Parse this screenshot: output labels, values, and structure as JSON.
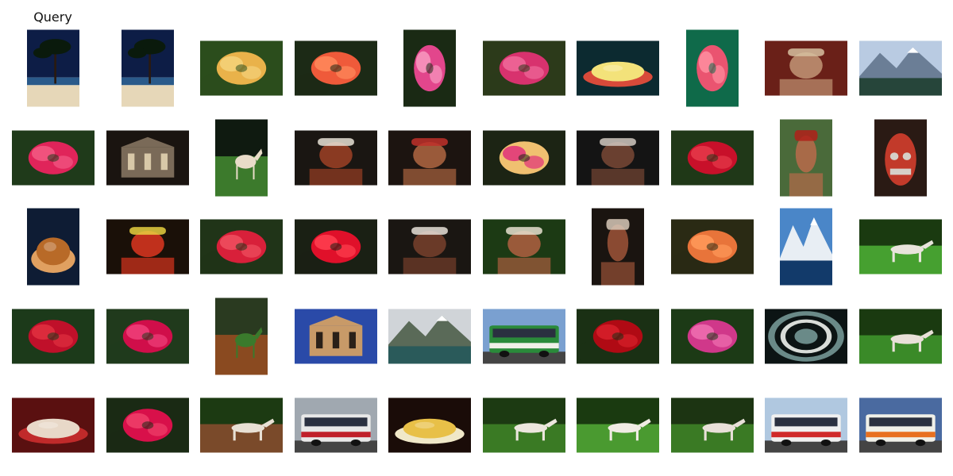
{
  "query_label": "Query",
  "results": [
    {
      "subject": "beach-palms",
      "orientation": "portrait",
      "palette": [
        "#0d1d46",
        "#2a5a8a",
        "#e6d7b8"
      ]
    },
    {
      "subject": "beach-palms",
      "orientation": "portrait",
      "palette": [
        "#0d1d46",
        "#2a5a8a",
        "#e6d7b8"
      ]
    },
    {
      "subject": "flower",
      "orientation": "landscape",
      "palette": [
        "#2b4d1c",
        "#e9b24a",
        "#f4d27a"
      ]
    },
    {
      "subject": "flower",
      "orientation": "landscape",
      "palette": [
        "#1c2a16",
        "#ef5a3a",
        "#ff8a5c"
      ]
    },
    {
      "subject": "flower",
      "orientation": "portrait",
      "palette": [
        "#1a2a14",
        "#e2468c",
        "#f89ac0"
      ]
    },
    {
      "subject": "flower",
      "orientation": "landscape",
      "palette": [
        "#2c3a1a",
        "#d8326e",
        "#f06a9a"
      ]
    },
    {
      "subject": "cake",
      "orientation": "landscape",
      "palette": [
        "#0c2a30",
        "#f3e27a",
        "#d84a3a"
      ]
    },
    {
      "subject": "flower",
      "orientation": "portrait",
      "palette": [
        "#0f6a4a",
        "#ea5470",
        "#ff8fa0"
      ]
    },
    {
      "subject": "person",
      "orientation": "landscape",
      "palette": [
        "#6a2018",
        "#b58468",
        "#d6c0a0"
      ]
    },
    {
      "subject": "mountain-lake",
      "orientation": "landscape",
      "palette": [
        "#b9cbe2",
        "#6b7e96",
        "#26453a"
      ]
    },
    {
      "subject": "flower",
      "orientation": "landscape",
      "palette": [
        "#1f3a1a",
        "#e0245a",
        "#f25a84"
      ]
    },
    {
      "subject": "building-night",
      "orientation": "landscape",
      "palette": [
        "#1a1410",
        "#7a6a58",
        "#d8c8a8"
      ]
    },
    {
      "subject": "horse",
      "orientation": "portrait",
      "palette": [
        "#0f1a10",
        "#3c7a2c",
        "#e8dcc8"
      ]
    },
    {
      "subject": "person",
      "orientation": "landscape",
      "palette": [
        "#1a1612",
        "#8a3a22",
        "#e8e2d6"
      ]
    },
    {
      "subject": "person",
      "orientation": "landscape",
      "palette": [
        "#1c1410",
        "#9a5a3a",
        "#c0302a"
      ]
    },
    {
      "subject": "flower",
      "orientation": "landscape",
      "palette": [
        "#1c2414",
        "#f0c070",
        "#e0307a"
      ]
    },
    {
      "subject": "person",
      "orientation": "landscape",
      "palette": [
        "#141414",
        "#6a4030",
        "#d0c8c0"
      ]
    },
    {
      "subject": "flower",
      "orientation": "landscape",
      "palette": [
        "#203818",
        "#c8102a",
        "#e63a4a"
      ]
    },
    {
      "subject": "person",
      "orientation": "portrait",
      "palette": [
        "#4a6a3a",
        "#a86a48",
        "#b0201a"
      ]
    },
    {
      "subject": "mask",
      "orientation": "portrait",
      "palette": [
        "#2a1a14",
        "#c23a2a",
        "#d6d0c8"
      ]
    },
    {
      "subject": "turkey",
      "orientation": "portrait",
      "palette": [
        "#0e1c34",
        "#b86a28",
        "#e0a060"
      ]
    },
    {
      "subject": "person",
      "orientation": "landscape",
      "palette": [
        "#1a1008",
        "#c0301c",
        "#e8d040"
      ]
    },
    {
      "subject": "flower",
      "orientation": "landscape",
      "palette": [
        "#203418",
        "#d8203a",
        "#f05060"
      ]
    },
    {
      "subject": "flower",
      "orientation": "landscape",
      "palette": [
        "#1a2014",
        "#e0102a",
        "#ff4050"
      ]
    },
    {
      "subject": "person",
      "orientation": "landscape",
      "palette": [
        "#1a1612",
        "#6a3a28",
        "#e8e0d8"
      ]
    },
    {
      "subject": "person",
      "orientation": "landscape",
      "palette": [
        "#1c3a14",
        "#9a5a3a",
        "#e8e0d0"
      ]
    },
    {
      "subject": "person",
      "orientation": "portrait",
      "palette": [
        "#1a1410",
        "#8a4a32",
        "#d8c8b8"
      ]
    },
    {
      "subject": "flower",
      "orientation": "landscape",
      "palette": [
        "#2a2a14",
        "#e8743a",
        "#ff9a5a"
      ]
    },
    {
      "subject": "mountain-lake",
      "orientation": "portrait",
      "palette": [
        "#4a86c8",
        "#e8eef4",
        "#123a6a"
      ]
    },
    {
      "subject": "horse",
      "orientation": "landscape",
      "palette": [
        "#1a3a10",
        "#46a030",
        "#e8e4dc"
      ]
    },
    {
      "subject": "flower",
      "orientation": "landscape",
      "palette": [
        "#1c3a1a",
        "#c0102a",
        "#e03040"
      ]
    },
    {
      "subject": "flower",
      "orientation": "landscape",
      "palette": [
        "#203a1c",
        "#d00e4a",
        "#f0407a"
      ]
    },
    {
      "subject": "horse",
      "orientation": "portrait",
      "palette": [
        "#2a3a20",
        "#8a4a20",
        "#3a7a2c"
      ]
    },
    {
      "subject": "building-day",
      "orientation": "landscape",
      "palette": [
        "#2a4aa8",
        "#c89a68",
        "#2a2018"
      ]
    },
    {
      "subject": "mountain-lake",
      "orientation": "landscape",
      "palette": [
        "#d0d4d8",
        "#5a6a58",
        "#2a5a5a"
      ]
    },
    {
      "subject": "bus",
      "orientation": "landscape",
      "palette": [
        "#7aa0d0",
        "#f0f0e8",
        "#2a8a3a"
      ]
    },
    {
      "subject": "flower",
      "orientation": "landscape",
      "palette": [
        "#1a3014",
        "#b00a14",
        "#d8202a"
      ]
    },
    {
      "subject": "flower",
      "orientation": "landscape",
      "palette": [
        "#1c3a16",
        "#d0388a",
        "#f070b0"
      ]
    },
    {
      "subject": "staircase",
      "orientation": "landscape",
      "palette": [
        "#0c1414",
        "#6a8a88",
        "#d8dcd8"
      ]
    },
    {
      "subject": "horse",
      "orientation": "landscape",
      "palette": [
        "#1a3a10",
        "#3a8a28",
        "#e8e0d8"
      ]
    },
    {
      "subject": "plate",
      "orientation": "landscape",
      "palette": [
        "#5a1010",
        "#e8d8c8",
        "#c02a2a"
      ]
    },
    {
      "subject": "flower",
      "orientation": "landscape",
      "palette": [
        "#1a2a14",
        "#d8104a",
        "#f0406a"
      ]
    },
    {
      "subject": "horse",
      "orientation": "landscape",
      "palette": [
        "#1c3a12",
        "#7a4a2a",
        "#e8e0d4"
      ]
    },
    {
      "subject": "bus",
      "orientation": "landscape",
      "palette": [
        "#a0a8b0",
        "#c0202a",
        "#e8e8e8"
      ]
    },
    {
      "subject": "cheese",
      "orientation": "landscape",
      "palette": [
        "#1a0c08",
        "#e8c048",
        "#f0e8c8"
      ]
    },
    {
      "subject": "horse",
      "orientation": "landscape",
      "palette": [
        "#1c3a12",
        "#3a7a24",
        "#ece6de"
      ]
    },
    {
      "subject": "horse",
      "orientation": "landscape",
      "palette": [
        "#1a3a10",
        "#4a9a30",
        "#f0ece4"
      ]
    },
    {
      "subject": "horse",
      "orientation": "landscape",
      "palette": [
        "#1c3412",
        "#3a7a24",
        "#e8e0d8"
      ]
    },
    {
      "subject": "bus",
      "orientation": "landscape",
      "palette": [
        "#b0c8e0",
        "#d02a2a",
        "#f0f0f0"
      ]
    },
    {
      "subject": "bus",
      "orientation": "landscape",
      "palette": [
        "#4a6aa0",
        "#e87020",
        "#f0f0e8"
      ]
    }
  ]
}
